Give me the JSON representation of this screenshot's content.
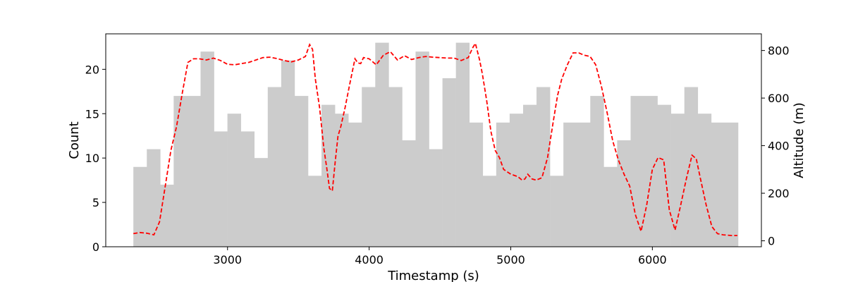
{
  "chart_data": {
    "type": "bar",
    "title": "",
    "xlabel": "Timestamp (s)",
    "ylabel": "Count",
    "y2label": "Altitude (m)",
    "xlim": [
      2140,
      6770
    ],
    "ylim": [
      0,
      24
    ],
    "y2lim": [
      -25,
      870
    ],
    "x_ticks": [
      3000,
      4000,
      5000,
      6000
    ],
    "y_ticks": [
      0,
      5,
      10,
      15,
      20
    ],
    "y2_ticks": [
      0,
      200,
      400,
      600,
      800
    ],
    "grid": false,
    "legend": "none",
    "bar_color": "#cccccc",
    "line_color": "#ff0000",
    "histogram": {
      "bin_start": 2335,
      "bin_width": 94.9,
      "counts": [
        9,
        11,
        7,
        17,
        17,
        22,
        13,
        15,
        13,
        10,
        18,
        21,
        17,
        8,
        16,
        15,
        14,
        18,
        23,
        18,
        12,
        22,
        11,
        19,
        23,
        14,
        8,
        14,
        15,
        16,
        18,
        8,
        14,
        14,
        17,
        9,
        12,
        17,
        17,
        16,
        15,
        18,
        15,
        14,
        14
      ]
    },
    "series": [
      {
        "type": "line",
        "style": "dashed",
        "axis": "right",
        "x": [
          2335,
          2380,
          2430,
          2480,
          2520,
          2560,
          2600,
          2640,
          2680,
          2720,
          2760,
          2800,
          2850,
          2900,
          2950,
          3000,
          3050,
          3100,
          3150,
          3200,
          3250,
          3300,
          3350,
          3400,
          3450,
          3500,
          3550,
          3580,
          3600,
          3620,
          3650,
          3680,
          3700,
          3720,
          3740,
          3760,
          3780,
          3800,
          3830,
          3860,
          3900,
          3920,
          3940,
          3960,
          4000,
          4050,
          4100,
          4150,
          4200,
          4250,
          4300,
          4350,
          4400,
          4450,
          4500,
          4550,
          4600,
          4650,
          4700,
          4730,
          4750,
          4780,
          4800,
          4830,
          4860,
          4890,
          4920,
          4950,
          5000,
          5050,
          5080,
          5100,
          5120,
          5150,
          5180,
          5220,
          5260,
          5300,
          5330,
          5360,
          5400,
          5440,
          5480,
          5520,
          5560,
          5600,
          5640,
          5680,
          5720,
          5760,
          5800,
          5840,
          5880,
          5920,
          5960,
          6000,
          6040,
          6080,
          6120,
          6160,
          6200,
          6240,
          6280,
          6310,
          6340,
          6380,
          6420,
          6460,
          6500,
          6560,
          6600
        ],
        "y": [
          30,
          35,
          32,
          25,
          80,
          230,
          380,
          480,
          620,
          750,
          765,
          765,
          760,
          768,
          758,
          742,
          740,
          745,
          750,
          760,
          770,
          772,
          766,
          758,
          752,
          760,
          775,
          825,
          805,
          680,
          560,
          390,
          310,
          220,
          210,
          330,
          440,
          480,
          560,
          650,
          765,
          748,
          745,
          770,
          765,
          740,
          780,
          795,
          760,
          778,
          762,
          770,
          775,
          772,
          770,
          768,
          768,
          758,
          770,
          810,
          830,
          760,
          700,
          590,
          460,
          380,
          350,
          300,
          280,
          270,
          255,
          260,
          280,
          260,
          255,
          265,
          350,
          500,
          610,
          680,
          740,
          790,
          790,
          780,
          775,
          740,
          650,
          540,
          420,
          340,
          280,
          230,
          110,
          40,
          150,
          300,
          350,
          340,
          130,
          45,
          150,
          260,
          360,
          345,
          260,
          150,
          60,
          30,
          25,
          22,
          22
        ]
      }
    ]
  }
}
